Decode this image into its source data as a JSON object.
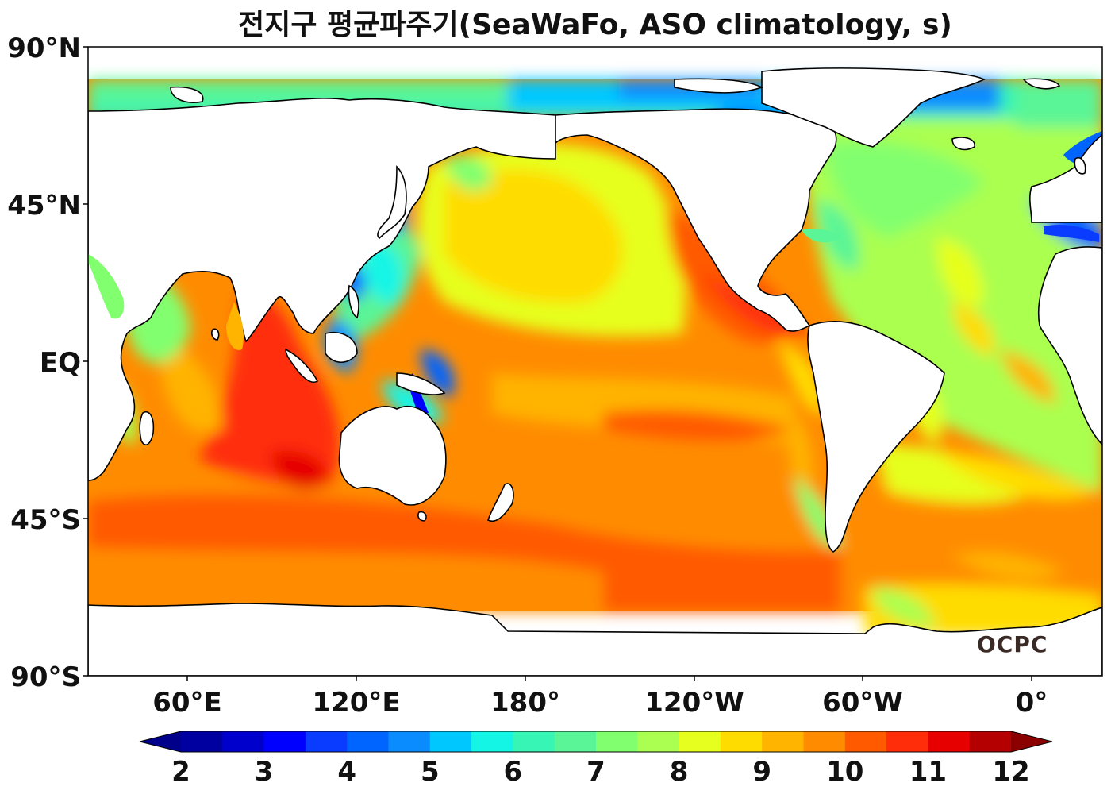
{
  "title": "전지구 평균파주기(SeaWaFo, ASO climatology, s)",
  "logo": "OCPC",
  "lat_labels": [
    "90°N",
    "45°N",
    "EQ",
    "45°S",
    "90°S"
  ],
  "lon_labels": [
    "60°E",
    "120°E",
    "180°",
    "120°W",
    "60°W",
    "0°"
  ],
  "colorbar": {
    "min": 2,
    "max": 12,
    "step": 0.5,
    "extend": "both",
    "tick_labels": [
      "2",
      "3",
      "4",
      "5",
      "6",
      "7",
      "8",
      "9",
      "10",
      "11",
      "12"
    ],
    "colors": [
      "#0000a0",
      "#0000cd",
      "#0000ff",
      "#0a3cff",
      "#0064ff",
      "#0a8cff",
      "#00c8ff",
      "#14f5e6",
      "#37f5b4",
      "#5af596",
      "#82ff6e",
      "#aaff50",
      "#e6ff1e",
      "#ffdc00",
      "#ffb400",
      "#ff8c00",
      "#ff5a00",
      "#ff2d0a",
      "#e60000",
      "#b40000"
    ],
    "under_color": "#00008b",
    "over_color": "#8b0000"
  },
  "land_color": "#ffffff",
  "coastline_color": "#000000"
}
